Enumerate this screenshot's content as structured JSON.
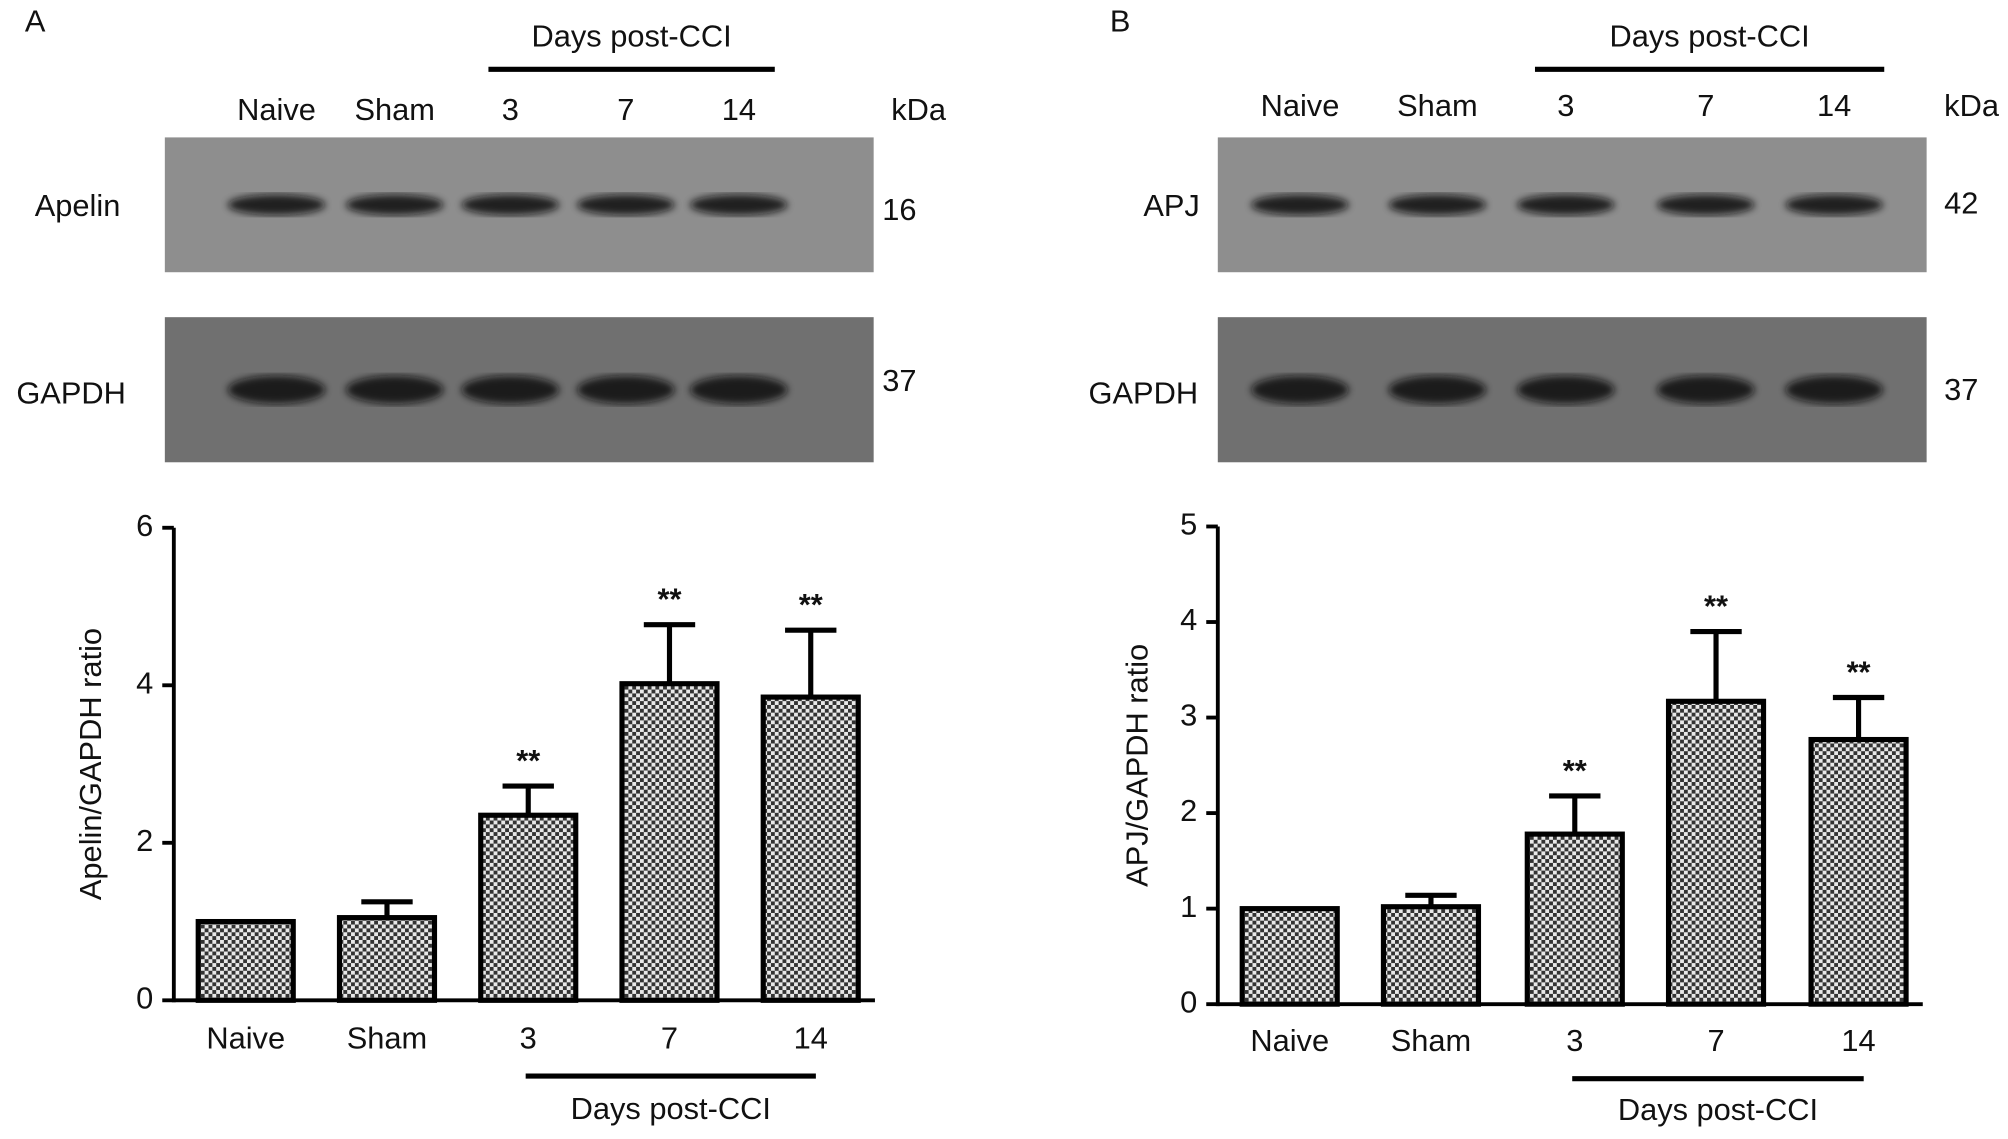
{
  "chart_data": [
    {
      "type": "bar",
      "panel": "A",
      "blot": {
        "lanes": [
          "Naive",
          "Sham",
          "3",
          "7",
          "14"
        ],
        "group_label": "Days post-CCI",
        "unit": "kDa",
        "rows": [
          {
            "name": "Apelin",
            "kda": 16
          },
          {
            "name": "GAPDH",
            "kda": 37
          }
        ]
      },
      "ylabel": "Apelin/GAPDH ratio",
      "categories": [
        "Naive",
        "Sham",
        "3",
        "7",
        "14"
      ],
      "group_label": "Days post-CCI",
      "values": [
        1.0,
        1.05,
        2.35,
        4.02,
        3.85
      ],
      "errors": [
        null,
        0.2,
        0.37,
        0.75,
        0.85
      ],
      "annotations": [
        null,
        null,
        "**",
        "**",
        "**"
      ],
      "ylim": [
        0,
        6
      ],
      "yticks": [
        0,
        2,
        4,
        6
      ]
    },
    {
      "type": "bar",
      "panel": "B",
      "blot": {
        "lanes": [
          "Naive",
          "Sham",
          "3",
          "7",
          "14"
        ],
        "group_label": "Days post-CCI",
        "unit": "kDa",
        "rows": [
          {
            "name": "APJ",
            "kda": 42
          },
          {
            "name": "GAPDH",
            "kda": 37
          }
        ]
      },
      "ylabel": "APJ/GAPDH ratio",
      "categories": [
        "Naive",
        "Sham",
        "3",
        "7",
        "14"
      ],
      "group_label": "Days post-CCI",
      "values": [
        1.0,
        1.02,
        1.78,
        3.17,
        2.77
      ],
      "errors": [
        null,
        0.12,
        0.4,
        0.73,
        0.44
      ],
      "annotations": [
        null,
        null,
        "**",
        "**",
        "**"
      ],
      "ylim": [
        0,
        5
      ],
      "yticks": [
        0,
        1,
        2,
        3,
        4,
        5
      ]
    }
  ]
}
